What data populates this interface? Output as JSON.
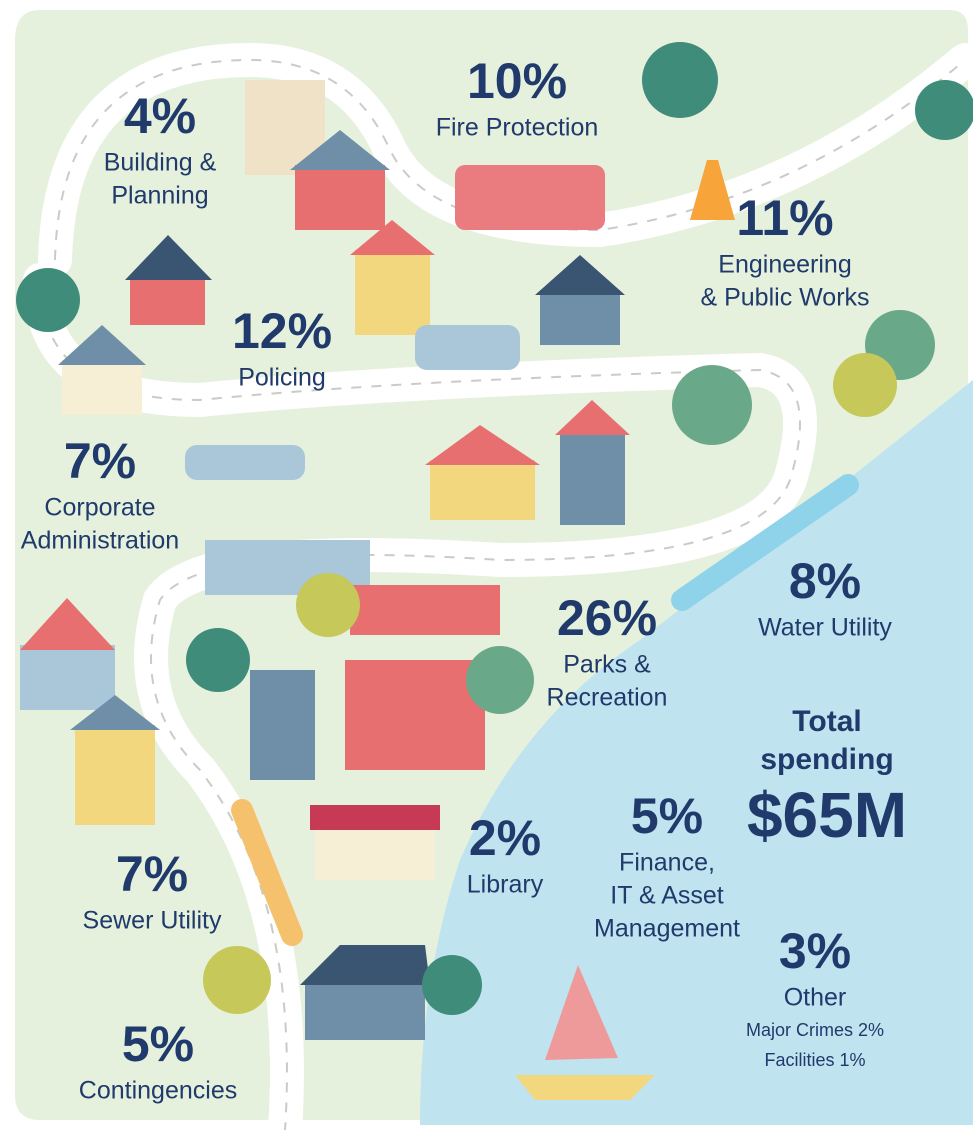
{
  "items": [
    {
      "percent": "4%",
      "label": [
        "Building &",
        "Planning"
      ]
    },
    {
      "percent": "10%",
      "label": [
        "Fire Protection"
      ]
    },
    {
      "percent": "11%",
      "label": [
        "Engineering",
        "& Public Works"
      ]
    },
    {
      "percent": "12%",
      "label": [
        "Policing"
      ]
    },
    {
      "percent": "7%",
      "label": [
        "Corporate",
        "Administration"
      ]
    },
    {
      "percent": "26%",
      "label": [
        "Parks &",
        "Recreation"
      ]
    },
    {
      "percent": "8%",
      "label": [
        "Water Utility"
      ]
    },
    {
      "percent": "5%",
      "label": [
        "Finance,",
        "IT & Asset",
        "Management"
      ]
    },
    {
      "percent": "2%",
      "label": [
        "Library"
      ]
    },
    {
      "percent": "7%",
      "label": [
        "Sewer Utility"
      ]
    },
    {
      "percent": "3%",
      "label": [
        "Other"
      ],
      "breakdown": [
        "Major Crimes 2%",
        "Facilities 1%"
      ]
    },
    {
      "percent": "5%",
      "label": [
        "Contingencies"
      ]
    }
  ],
  "total": {
    "heading": [
      "Total",
      "spending"
    ],
    "amount": "$65M"
  }
}
